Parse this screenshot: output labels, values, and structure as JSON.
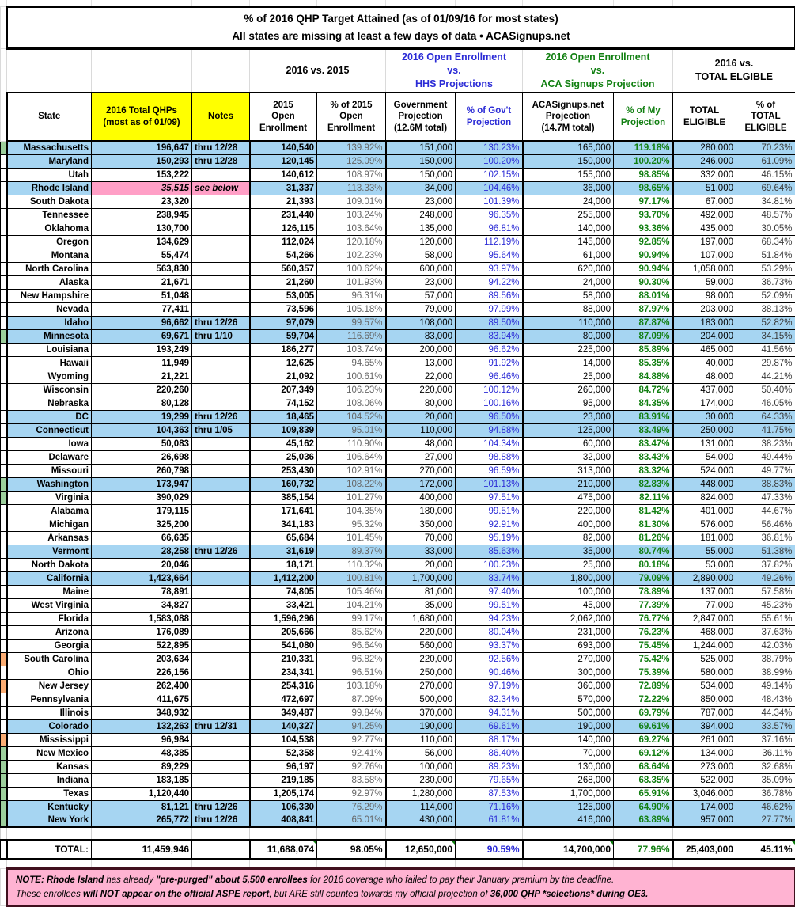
{
  "title": {
    "line1": "% of 2016 QHP Target Attained (as of 01/09/16 for most states)",
    "line2": "All states are missing at least a few days of data • ACASignups.net"
  },
  "groups": {
    "vs2015": "2016 vs. 2015",
    "hhs": "2016 Open Enrollment\nvs.\nHHS Projections",
    "aca": "2016 Open Enrollment\nvs.\nACA Signups Projection",
    "eligible": "2016 vs.\nTOTAL ELGIBLE"
  },
  "columns": {
    "state": "State",
    "qhp": "2016 Total QHPs\n(most as of 01/09)",
    "notes": "Notes",
    "oe2015": "2015\nOpen\nEnrollment",
    "pct2015": "% of 2015\nOpen\nEnrollment",
    "gov": "Government\nProjection\n(12.6M total)",
    "pctgov": "% of Gov't\nProjection",
    "aca": "ACASignups.net\nProjection\n(14.7M total)",
    "pctaca": "% of My\nProjection",
    "eligible": "TOTAL\nELIGIBLE",
    "pcteligible": "% of\nTOTAL\nELIGIBLE"
  },
  "colors": {
    "sbm_row_blue": "#A6D5F2",
    "highlight_yellow": "#FFFF00",
    "rhode_island_pink": "#FF9FC6",
    "note_pink": "#FFB3D2",
    "gov_pct_blue": "#2B2BD6",
    "my_pct_green": "#117F11",
    "gutter_green": "#9CCF9C",
    "gutter_orange": "#FBAD74"
  },
  "rows": [
    {
      "state": "Massachusetts",
      "qhp": "196,647",
      "note": "thru 12/28",
      "oe2015": "140,540",
      "pct2015": "139.92%",
      "gov": "151,000",
      "pctgov": "130.23%",
      "aca": "165,000",
      "pctaca": "119.18%",
      "eligible": "280,000",
      "pcteligible": "70.23%",
      "sbm": true,
      "gutter": "green"
    },
    {
      "state": "Maryland",
      "qhp": "150,293",
      "note": "thru 12/28",
      "oe2015": "120,145",
      "pct2015": "125.09%",
      "gov": "150,000",
      "pctgov": "100.20%",
      "aca": "150,000",
      "pctaca": "100.20%",
      "eligible": "246,000",
      "pcteligible": "61.09%",
      "sbm": true
    },
    {
      "state": "Utah",
      "qhp": "153,222",
      "note": "",
      "oe2015": "140,612",
      "pct2015": "108.97%",
      "gov": "150,000",
      "pctgov": "102.15%",
      "aca": "155,000",
      "pctaca": "98.85%",
      "eligible": "332,000",
      "pcteligible": "46.15%"
    },
    {
      "state": "Rhode Island",
      "qhp": "35,515",
      "note": "see below",
      "oe2015": "31,337",
      "pct2015": "113.33%",
      "gov": "34,000",
      "pctgov": "104.46%",
      "aca": "36,000",
      "pctaca": "98.65%",
      "eligible": "51,000",
      "pcteligible": "69.64%",
      "sbm": true,
      "ri": true
    },
    {
      "state": "South Dakota",
      "qhp": "23,320",
      "note": "",
      "oe2015": "21,393",
      "pct2015": "109.01%",
      "gov": "23,000",
      "pctgov": "101.39%",
      "aca": "24,000",
      "pctaca": "97.17%",
      "eligible": "67,000",
      "pcteligible": "34.81%"
    },
    {
      "state": "Tennessee",
      "qhp": "238,945",
      "note": "",
      "oe2015": "231,440",
      "pct2015": "103.24%",
      "gov": "248,000",
      "pctgov": "96.35%",
      "aca": "255,000",
      "pctaca": "93.70%",
      "eligible": "492,000",
      "pcteligible": "48.57%"
    },
    {
      "state": "Oklahoma",
      "qhp": "130,700",
      "note": "",
      "oe2015": "126,115",
      "pct2015": "103.64%",
      "gov": "135,000",
      "pctgov": "96.81%",
      "aca": "140,000",
      "pctaca": "93.36%",
      "eligible": "435,000",
      "pcteligible": "30.05%"
    },
    {
      "state": "Oregon",
      "qhp": "134,629",
      "note": "",
      "oe2015": "112,024",
      "pct2015": "120.18%",
      "gov": "120,000",
      "pctgov": "112.19%",
      "aca": "145,000",
      "pctaca": "92.85%",
      "eligible": "197,000",
      "pcteligible": "68.34%"
    },
    {
      "state": "Montana",
      "qhp": "55,474",
      "note": "",
      "oe2015": "54,266",
      "pct2015": "102.23%",
      "gov": "58,000",
      "pctgov": "95.64%",
      "aca": "61,000",
      "pctaca": "90.94%",
      "eligible": "107,000",
      "pcteligible": "51.84%"
    },
    {
      "state": "North Carolina",
      "qhp": "563,830",
      "note": "",
      "oe2015": "560,357",
      "pct2015": "100.62%",
      "gov": "600,000",
      "pctgov": "93.97%",
      "aca": "620,000",
      "pctaca": "90.94%",
      "eligible": "1,058,000",
      "pcteligible": "53.29%"
    },
    {
      "state": "Alaska",
      "qhp": "21,671",
      "note": "",
      "oe2015": "21,260",
      "pct2015": "101.93%",
      "gov": "23,000",
      "pctgov": "94.22%",
      "aca": "24,000",
      "pctaca": "90.30%",
      "eligible": "59,000",
      "pcteligible": "36.73%"
    },
    {
      "state": "New Hampshire",
      "qhp": "51,048",
      "note": "",
      "oe2015": "53,005",
      "pct2015": "96.31%",
      "gov": "57,000",
      "pctgov": "89.56%",
      "aca": "58,000",
      "pctaca": "88.01%",
      "eligible": "98,000",
      "pcteligible": "52.09%"
    },
    {
      "state": "Nevada",
      "qhp": "77,411",
      "note": "",
      "oe2015": "73,596",
      "pct2015": "105.18%",
      "gov": "79,000",
      "pctgov": "97.99%",
      "aca": "88,000",
      "pctaca": "87.97%",
      "eligible": "203,000",
      "pcteligible": "38.13%"
    },
    {
      "state": "Idaho",
      "qhp": "96,662",
      "note": "thru 12/26",
      "oe2015": "97,079",
      "pct2015": "99.57%",
      "gov": "108,000",
      "pctgov": "89.50%",
      "aca": "110,000",
      "pctaca": "87.87%",
      "eligible": "183,000",
      "pcteligible": "52.82%",
      "sbm": true
    },
    {
      "state": "Minnesota",
      "qhp": "69,671",
      "note": "thru 1/10",
      "oe2015": "59,704",
      "pct2015": "116.69%",
      "gov": "83,000",
      "pctgov": "83.94%",
      "aca": "80,000",
      "pctaca": "87.09%",
      "eligible": "204,000",
      "pcteligible": "34.15%",
      "sbm": true,
      "gutter": "green"
    },
    {
      "state": "Louisiana",
      "qhp": "193,249",
      "note": "",
      "oe2015": "186,277",
      "pct2015": "103.74%",
      "gov": "200,000",
      "pctgov": "96.62%",
      "aca": "225,000",
      "pctaca": "85.89%",
      "eligible": "465,000",
      "pcteligible": "41.56%"
    },
    {
      "state": "Hawaii",
      "qhp": "11,949",
      "note": "",
      "oe2015": "12,625",
      "pct2015": "94.65%",
      "gov": "13,000",
      "pctgov": "91.92%",
      "aca": "14,000",
      "pctaca": "85.35%",
      "eligible": "40,000",
      "pcteligible": "29.87%"
    },
    {
      "state": "Wyoming",
      "qhp": "21,221",
      "note": "",
      "oe2015": "21,092",
      "pct2015": "100.61%",
      "gov": "22,000",
      "pctgov": "96.46%",
      "aca": "25,000",
      "pctaca": "84.88%",
      "eligible": "48,000",
      "pcteligible": "44.21%"
    },
    {
      "state": "Wisconsin",
      "qhp": "220,260",
      "note": "",
      "oe2015": "207,349",
      "pct2015": "106.23%",
      "gov": "220,000",
      "pctgov": "100.12%",
      "aca": "260,000",
      "pctaca": "84.72%",
      "eligible": "437,000",
      "pcteligible": "50.40%"
    },
    {
      "state": "Nebraska",
      "qhp": "80,128",
      "note": "",
      "oe2015": "74,152",
      "pct2015": "108.06%",
      "gov": "80,000",
      "pctgov": "100.16%",
      "aca": "95,000",
      "pctaca": "84.35%",
      "eligible": "174,000",
      "pcteligible": "46.05%"
    },
    {
      "state": "DC",
      "qhp": "19,299",
      "note": "thru 12/26",
      "oe2015": "18,465",
      "pct2015": "104.52%",
      "gov": "20,000",
      "pctgov": "96.50%",
      "aca": "23,000",
      "pctaca": "83.91%",
      "eligible": "30,000",
      "pcteligible": "64.33%",
      "sbm": true
    },
    {
      "state": "Connecticut",
      "qhp": "104,363",
      "note": "thru 1/05",
      "oe2015": "109,839",
      "pct2015": "95.01%",
      "gov": "110,000",
      "pctgov": "94.88%",
      "aca": "125,000",
      "pctaca": "83.49%",
      "eligible": "250,000",
      "pcteligible": "41.75%",
      "sbm": true
    },
    {
      "state": "Iowa",
      "qhp": "50,083",
      "note": "",
      "oe2015": "45,162",
      "pct2015": "110.90%",
      "gov": "48,000",
      "pctgov": "104.34%",
      "aca": "60,000",
      "pctaca": "83.47%",
      "eligible": "131,000",
      "pcteligible": "38.23%"
    },
    {
      "state": "Delaware",
      "qhp": "26,698",
      "note": "",
      "oe2015": "25,036",
      "pct2015": "106.64%",
      "gov": "27,000",
      "pctgov": "98.88%",
      "aca": "32,000",
      "pctaca": "83.43%",
      "eligible": "54,000",
      "pcteligible": "49.44%"
    },
    {
      "state": "Missouri",
      "qhp": "260,798",
      "note": "",
      "oe2015": "253,430",
      "pct2015": "102.91%",
      "gov": "270,000",
      "pctgov": "96.59%",
      "aca": "313,000",
      "pctaca": "83.32%",
      "eligible": "524,000",
      "pcteligible": "49.77%"
    },
    {
      "state": "Washington",
      "qhp": "173,947",
      "note": "",
      "oe2015": "160,732",
      "pct2015": "108.22%",
      "gov": "172,000",
      "pctgov": "101.13%",
      "aca": "210,000",
      "pctaca": "82.83%",
      "eligible": "448,000",
      "pcteligible": "38.83%",
      "sbm": true,
      "gutter": "green"
    },
    {
      "state": "Virginia",
      "qhp": "390,029",
      "note": "",
      "oe2015": "385,154",
      "pct2015": "101.27%",
      "gov": "400,000",
      "pctgov": "97.51%",
      "aca": "475,000",
      "pctaca": "82.11%",
      "eligible": "824,000",
      "pcteligible": "47.33%",
      "gutter": "green"
    },
    {
      "state": "Alabama",
      "qhp": "179,115",
      "note": "",
      "oe2015": "171,641",
      "pct2015": "104.35%",
      "gov": "180,000",
      "pctgov": "99.51%",
      "aca": "220,000",
      "pctaca": "81.42%",
      "eligible": "401,000",
      "pcteligible": "44.67%"
    },
    {
      "state": "Michigan",
      "qhp": "325,200",
      "note": "",
      "oe2015": "341,183",
      "pct2015": "95.32%",
      "gov": "350,000",
      "pctgov": "92.91%",
      "aca": "400,000",
      "pctaca": "81.30%",
      "eligible": "576,000",
      "pcteligible": "56.46%"
    },
    {
      "state": "Arkansas",
      "qhp": "66,635",
      "note": "",
      "oe2015": "65,684",
      "pct2015": "101.45%",
      "gov": "70,000",
      "pctgov": "95.19%",
      "aca": "82,000",
      "pctaca": "81.26%",
      "eligible": "181,000",
      "pcteligible": "36.81%"
    },
    {
      "state": "Vermont",
      "qhp": "28,258",
      "note": "thru 12/26",
      "oe2015": "31,619",
      "pct2015": "89.37%",
      "gov": "33,000",
      "pctgov": "85.63%",
      "aca": "35,000",
      "pctaca": "80.74%",
      "eligible": "55,000",
      "pcteligible": "51.38%",
      "sbm": true
    },
    {
      "state": "North Dakota",
      "qhp": "20,046",
      "note": "",
      "oe2015": "18,171",
      "pct2015": "110.32%",
      "gov": "20,000",
      "pctgov": "100.23%",
      "aca": "25,000",
      "pctaca": "80.18%",
      "eligible": "53,000",
      "pcteligible": "37.82%"
    },
    {
      "state": "California",
      "qhp": "1,423,664",
      "note": "",
      "oe2015": "1,412,200",
      "pct2015": "100.81%",
      "gov": "1,700,000",
      "pctgov": "83.74%",
      "aca": "1,800,000",
      "pctaca": "79.09%",
      "eligible": "2,890,000",
      "pcteligible": "49.26%",
      "sbm": true
    },
    {
      "state": "Maine",
      "qhp": "78,891",
      "note": "",
      "oe2015": "74,805",
      "pct2015": "105.46%",
      "gov": "81,000",
      "pctgov": "97.40%",
      "aca": "100,000",
      "pctaca": "78.89%",
      "eligible": "137,000",
      "pcteligible": "57.58%"
    },
    {
      "state": "West Virginia",
      "qhp": "34,827",
      "note": "",
      "oe2015": "33,421",
      "pct2015": "104.21%",
      "gov": "35,000",
      "pctgov": "99.51%",
      "aca": "45,000",
      "pctaca": "77.39%",
      "eligible": "77,000",
      "pcteligible": "45.23%"
    },
    {
      "state": "Florida",
      "qhp": "1,583,088",
      "note": "",
      "oe2015": "1,596,296",
      "pct2015": "99.17%",
      "gov": "1,680,000",
      "pctgov": "94.23%",
      "aca": "2,062,000",
      "pctaca": "76.77%",
      "eligible": "2,847,000",
      "pcteligible": "55.61%"
    },
    {
      "state": "Arizona",
      "qhp": "176,089",
      "note": "",
      "oe2015": "205,666",
      "pct2015": "85.62%",
      "gov": "220,000",
      "pctgov": "80.04%",
      "aca": "231,000",
      "pctaca": "76.23%",
      "eligible": "468,000",
      "pcteligible": "37.63%"
    },
    {
      "state": "Georgia",
      "qhp": "522,895",
      "note": "",
      "oe2015": "541,080",
      "pct2015": "96.64%",
      "gov": "560,000",
      "pctgov": "93.37%",
      "aca": "693,000",
      "pctaca": "75.45%",
      "eligible": "1,244,000",
      "pcteligible": "42.03%"
    },
    {
      "state": "South Carolina",
      "qhp": "203,634",
      "note": "",
      "oe2015": "210,331",
      "pct2015": "96.82%",
      "gov": "220,000",
      "pctgov": "92.56%",
      "aca": "270,000",
      "pctaca": "75.42%",
      "eligible": "525,000",
      "pcteligible": "38.79%",
      "gutter": "orange"
    },
    {
      "state": "Ohio",
      "qhp": "226,156",
      "note": "",
      "oe2015": "234,341",
      "pct2015": "96.51%",
      "gov": "250,000",
      "pctgov": "90.46%",
      "aca": "300,000",
      "pctaca": "75.39%",
      "eligible": "580,000",
      "pcteligible": "38.99%"
    },
    {
      "state": "New Jersey",
      "qhp": "262,400",
      "note": "",
      "oe2015": "254,316",
      "pct2015": "103.18%",
      "gov": "270,000",
      "pctgov": "97.19%",
      "aca": "360,000",
      "pctaca": "72.89%",
      "eligible": "534,000",
      "pcteligible": "49.14%",
      "gutter": "orange"
    },
    {
      "state": "Pennsylvania",
      "qhp": "411,675",
      "note": "",
      "oe2015": "472,697",
      "pct2015": "87.09%",
      "gov": "500,000",
      "pctgov": "82.34%",
      "aca": "570,000",
      "pctaca": "72.22%",
      "eligible": "850,000",
      "pcteligible": "48.43%"
    },
    {
      "state": "Illinois",
      "qhp": "348,932",
      "note": "",
      "oe2015": "349,487",
      "pct2015": "99.84%",
      "gov": "370,000",
      "pctgov": "94.31%",
      "aca": "500,000",
      "pctaca": "69.79%",
      "eligible": "787,000",
      "pcteligible": "44.34%"
    },
    {
      "state": "Colorado",
      "qhp": "132,263",
      "note": "thru 12/31",
      "oe2015": "140,327",
      "pct2015": "94.25%",
      "gov": "190,000",
      "pctgov": "69.61%",
      "aca": "190,000",
      "pctaca": "69.61%",
      "eligible": "394,000",
      "pcteligible": "33.57%",
      "sbm": true
    },
    {
      "state": "Mississippi",
      "qhp": "96,984",
      "note": "",
      "oe2015": "104,538",
      "pct2015": "92.77%",
      "gov": "110,000",
      "pctgov": "88.17%",
      "aca": "140,000",
      "pctaca": "69.27%",
      "eligible": "261,000",
      "pcteligible": "37.16%",
      "gutter": "orange"
    },
    {
      "state": "New Mexico",
      "qhp": "48,385",
      "note": "",
      "oe2015": "52,358",
      "pct2015": "92.41%",
      "gov": "56,000",
      "pctgov": "86.40%",
      "aca": "70,000",
      "pctaca": "69.12%",
      "eligible": "134,000",
      "pcteligible": "36.11%",
      "gutter": "green"
    },
    {
      "state": "Kansas",
      "qhp": "89,229",
      "note": "",
      "oe2015": "96,197",
      "pct2015": "92.76%",
      "gov": "100,000",
      "pctgov": "89.23%",
      "aca": "130,000",
      "pctaca": "68.64%",
      "eligible": "273,000",
      "pcteligible": "32.68%",
      "gutter": "green"
    },
    {
      "state": "Indiana",
      "qhp": "183,185",
      "note": "",
      "oe2015": "219,185",
      "pct2015": "83.58%",
      "gov": "230,000",
      "pctgov": "79.65%",
      "aca": "268,000",
      "pctaca": "68.35%",
      "eligible": "522,000",
      "pcteligible": "35.09%",
      "gutter": "green"
    },
    {
      "state": "Texas",
      "qhp": "1,120,440",
      "note": "",
      "oe2015": "1,205,174",
      "pct2015": "92.97%",
      "gov": "1,280,000",
      "pctgov": "87.53%",
      "aca": "1,700,000",
      "pctaca": "65.91%",
      "eligible": "3,046,000",
      "pcteligible": "36.78%",
      "gutter": "green"
    },
    {
      "state": "Kentucky",
      "qhp": "81,121",
      "note": "thru 12/26",
      "oe2015": "106,330",
      "pct2015": "76.29%",
      "gov": "114,000",
      "pctgov": "71.16%",
      "aca": "125,000",
      "pctaca": "64.90%",
      "eligible": "174,000",
      "pcteligible": "46.62%",
      "sbm": true,
      "gutter": "green"
    },
    {
      "state": "New York",
      "qhp": "265,772",
      "note": "thru 12/26",
      "oe2015": "408,841",
      "pct2015": "65.01%",
      "gov": "430,000",
      "pctgov": "61.81%",
      "aca": "416,000",
      "pctaca": "63.89%",
      "eligible": "957,000",
      "pcteligible": "27.77%",
      "sbm": true,
      "gutter": "green"
    }
  ],
  "total": {
    "label": "TOTAL:",
    "qhp": "11,459,946",
    "oe2015": "11,688,074",
    "pct2015": "98.05%",
    "gov": "12,650,000",
    "pctgov": "90.59%",
    "aca": "14,700,000",
    "pctaca": "77.96%",
    "eligible": "25,403,000",
    "pcteligible": "45.11%"
  },
  "note": {
    "line1": [
      {
        "t": "NOTE: Rhode Island",
        "b": true
      },
      {
        "t": " has already ",
        "b": false
      },
      {
        "t": "\"pre-purged\" about 5,500 enrollees",
        "b": true
      },
      {
        "t": " for 2016 coverage who failed to pay their January premium by the deadline.",
        "b": false
      }
    ],
    "line2": [
      {
        "t": "These enrollees ",
        "b": false
      },
      {
        "t": "will NOT appear on the official ASPE report",
        "b": true
      },
      {
        "t": ", but ARE still counted towards my official projection of ",
        "b": false
      },
      {
        "t": "36,000 QHP *selections* during OE3.",
        "b": true
      }
    ]
  }
}
